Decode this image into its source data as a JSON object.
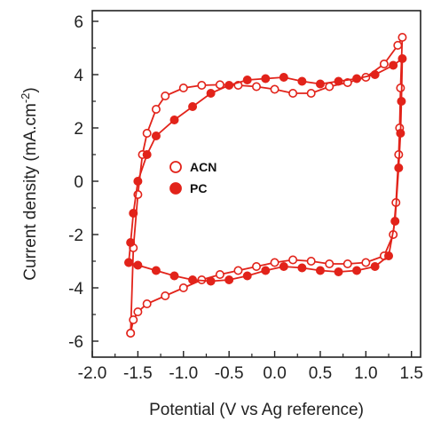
{
  "chart_data": {
    "type": "line",
    "xlabel": "Potential (V vs Ag reference)",
    "ylabel_main": "Current density (mA.cm",
    "ylabel_sup": "-2",
    "ylabel_close": ")",
    "xlim": [
      -2.0,
      1.6
    ],
    "ylim": [
      -6.6,
      6.4
    ],
    "x_ticks": [
      -2.0,
      -1.5,
      -1.0,
      -0.5,
      0.0,
      0.5,
      1.0,
      1.5
    ],
    "x_tick_labels": [
      "-2.0",
      "-1.5",
      "-1.0",
      "-0.5",
      "0.0",
      "0.5",
      "1.0",
      "1.5"
    ],
    "y_ticks": [
      -6,
      -4,
      -2,
      0,
      2,
      4,
      6
    ],
    "y_tick_labels": [
      "-6",
      "-4",
      "-2",
      "0",
      "2",
      "4",
      "6"
    ],
    "grid": false,
    "legend_position": "center-left",
    "series": [
      {
        "name": "ACN",
        "color": "#e2231a",
        "marker": "open-circle",
        "points": [
          [
            -1.58,
            -5.7
          ],
          [
            -1.55,
            -5.2
          ],
          [
            -1.5,
            -4.9
          ],
          [
            -1.4,
            -4.6
          ],
          [
            -1.2,
            -4.3
          ],
          [
            -1.0,
            -4.0
          ],
          [
            -0.8,
            -3.7
          ],
          [
            -0.6,
            -3.5
          ],
          [
            -0.4,
            -3.35
          ],
          [
            -0.2,
            -3.2
          ],
          [
            0.0,
            -3.05
          ],
          [
            0.2,
            -2.95
          ],
          [
            0.4,
            -3.0
          ],
          [
            0.6,
            -3.1
          ],
          [
            0.8,
            -3.1
          ],
          [
            1.0,
            -3.05
          ],
          [
            1.2,
            -2.8
          ],
          [
            1.3,
            -2.0
          ],
          [
            1.33,
            -0.8
          ],
          [
            1.36,
            1.0
          ],
          [
            1.37,
            2.0
          ],
          [
            1.38,
            3.5
          ],
          [
            1.4,
            5.4
          ],
          [
            1.35,
            5.1
          ],
          [
            1.2,
            4.4
          ],
          [
            1.0,
            3.9
          ],
          [
            0.8,
            3.7
          ],
          [
            0.6,
            3.55
          ],
          [
            0.4,
            3.3
          ],
          [
            0.2,
            3.3
          ],
          [
            0.0,
            3.45
          ],
          [
            -0.2,
            3.55
          ],
          [
            -0.4,
            3.6
          ],
          [
            -0.6,
            3.62
          ],
          [
            -0.8,
            3.6
          ],
          [
            -1.0,
            3.5
          ],
          [
            -1.2,
            3.2
          ],
          [
            -1.3,
            2.7
          ],
          [
            -1.4,
            1.8
          ],
          [
            -1.45,
            1.0
          ],
          [
            -1.5,
            -0.5
          ],
          [
            -1.55,
            -2.5
          ],
          [
            -1.58,
            -5.7
          ]
        ]
      },
      {
        "name": "PC",
        "color": "#e2231a",
        "marker": "filled-circle",
        "points": [
          [
            -1.6,
            -3.05
          ],
          [
            -1.5,
            -3.15
          ],
          [
            -1.3,
            -3.35
          ],
          [
            -1.1,
            -3.55
          ],
          [
            -0.9,
            -3.7
          ],
          [
            -0.7,
            -3.75
          ],
          [
            -0.5,
            -3.7
          ],
          [
            -0.3,
            -3.55
          ],
          [
            -0.1,
            -3.35
          ],
          [
            0.1,
            -3.2
          ],
          [
            0.3,
            -3.25
          ],
          [
            0.5,
            -3.35
          ],
          [
            0.7,
            -3.4
          ],
          [
            0.9,
            -3.35
          ],
          [
            1.1,
            -3.2
          ],
          [
            1.25,
            -2.8
          ],
          [
            1.32,
            -1.5
          ],
          [
            1.36,
            0.5
          ],
          [
            1.38,
            1.8
          ],
          [
            1.39,
            3.0
          ],
          [
            1.4,
            4.6
          ],
          [
            1.3,
            4.35
          ],
          [
            1.1,
            4.0
          ],
          [
            0.9,
            3.85
          ],
          [
            0.7,
            3.75
          ],
          [
            0.5,
            3.65
          ],
          [
            0.3,
            3.75
          ],
          [
            0.1,
            3.9
          ],
          [
            -0.1,
            3.85
          ],
          [
            -0.3,
            3.8
          ],
          [
            -0.5,
            3.6
          ],
          [
            -0.7,
            3.3
          ],
          [
            -0.9,
            2.8
          ],
          [
            -1.1,
            2.3
          ],
          [
            -1.3,
            1.7
          ],
          [
            -1.4,
            1.0
          ],
          [
            -1.5,
            0.0
          ],
          [
            -1.55,
            -1.2
          ],
          [
            -1.58,
            -2.3
          ],
          [
            -1.6,
            -3.05
          ]
        ]
      }
    ]
  }
}
